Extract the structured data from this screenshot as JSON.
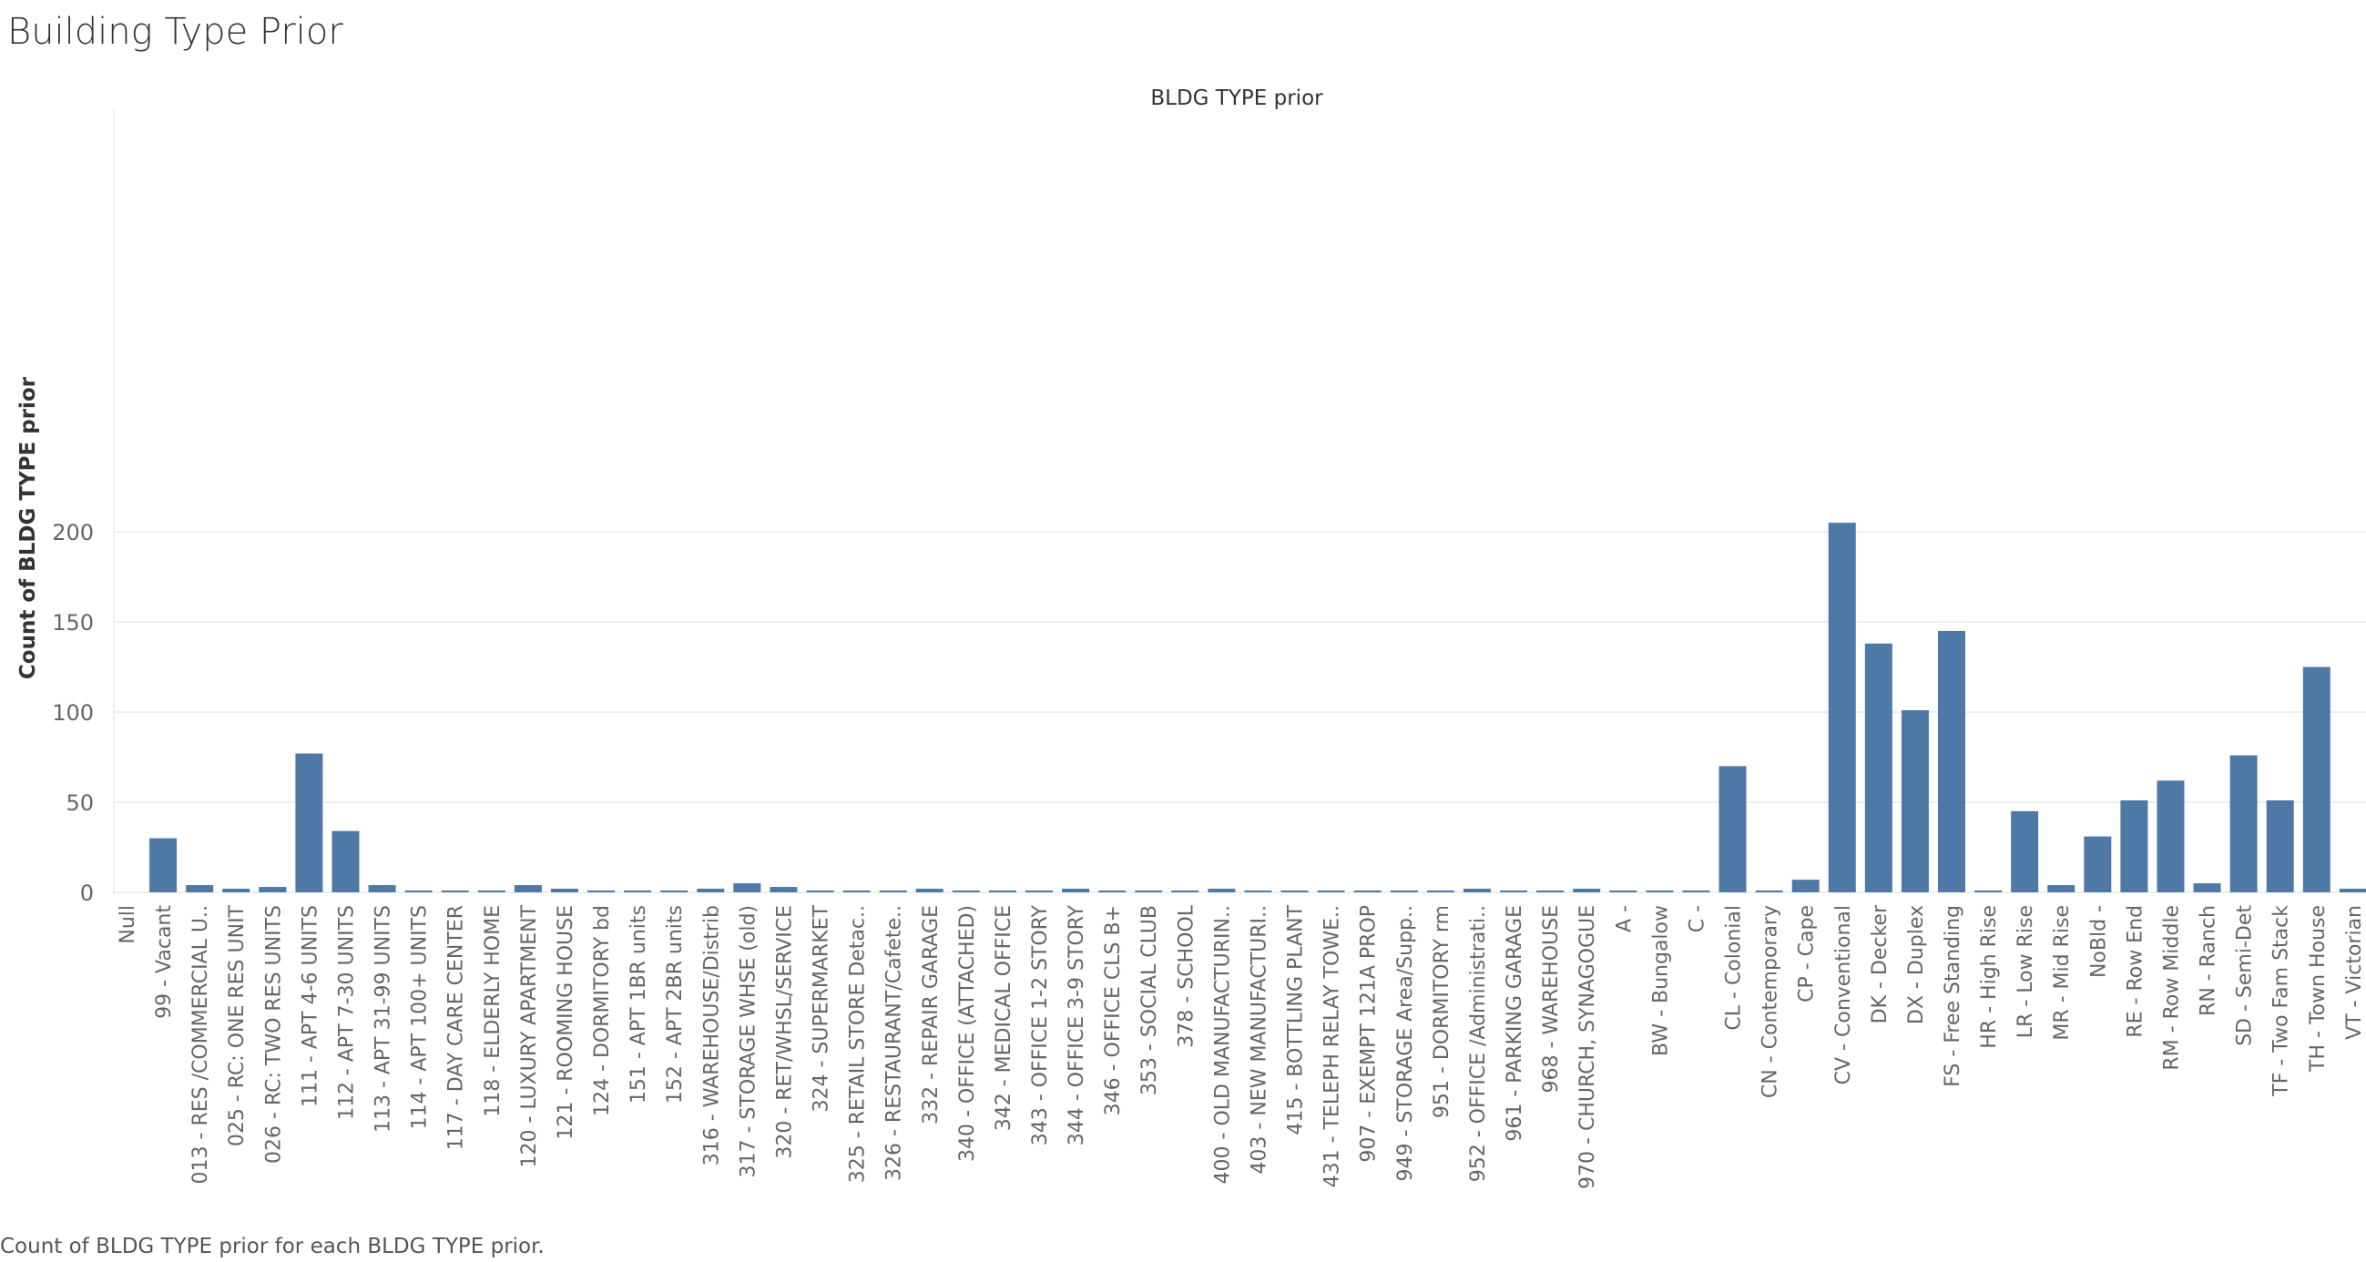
{
  "page": {
    "title": "Building Type Prior",
    "caption": "Count of BLDG TYPE prior for each BLDG TYPE prior."
  },
  "colors": {
    "bar": "#4e79a7",
    "grid": "#e8e8e8",
    "text": "#333333",
    "axis": "#666666"
  },
  "chart_data": {
    "type": "bar",
    "title": "BLDG TYPE prior",
    "xlabel": "",
    "ylabel": "Count of BLDG TYPE prior",
    "ylim": [
      0,
      205
    ],
    "yticks": [
      0,
      50,
      100,
      150,
      200
    ],
    "grid": true,
    "categories": [
      "Null",
      "99 - Vacant",
      "013 - RES /COMMERCIAL U..",
      "025 - RC: ONE RES UNIT",
      "026 - RC: TWO RES UNITS",
      "111 - APT 4-6 UNITS",
      "112 - APT 7-30 UNITS",
      "113 - APT 31-99 UNITS",
      "114 - APT 100+ UNITS",
      "117 - DAY CARE CENTER",
      "118 - ELDERLY HOME",
      "120 - LUXURY APARTMENT",
      "121 - ROOMING HOUSE",
      "124 - DORMITORY  bd",
      "151 - APT 1BR units",
      "152 - APT 2BR units",
      "316 - WAREHOUSE/Distrib",
      "317 - STORAGE WHSE (old)",
      "320 - RET/WHSL/SERVICE",
      "324 - SUPERMARKET",
      "325 - RETAIL STORE Detac..",
      "326 - RESTAURANT/Cafete..",
      "332 - REPAIR GARAGE",
      "340 - OFFICE (ATTACHED)",
      "342 - MEDICAL OFFICE",
      "343 - OFFICE 1-2 STORY",
      "344 - OFFICE 3-9 STORY",
      "346 - OFFICE CLS B+",
      "353 - SOCIAL CLUB",
      "378 - SCHOOL",
      "400 - OLD MANUFACTURIN..",
      "403 - NEW MANUFACTURI..",
      "415 - BOTTLING PLANT",
      "431 - TELEPH RELAY TOWE..",
      "907 - EXEMPT 121A PROP",
      "949 - STORAGE Area/Supp..",
      "951 - DORMITORY  rm",
      "952 - OFFICE /Administrati..",
      "961 - PARKING GARAGE",
      "968 - WAREHOUSE",
      "970 - CHURCH, SYNAGOGUE",
      "A -",
      "BW - Bungalow",
      "C -",
      "CL - Colonial",
      "CN - Contemporary",
      "CP - Cape",
      "CV - Conventional",
      "DK - Decker",
      "DX - Duplex",
      "FS - Free Standing",
      "HR - High Rise",
      "LR - Low Rise",
      "MR - Mid Rise",
      "NoBld -",
      "RE - Row End",
      "RM - Row Middle",
      "RN - Ranch",
      "SD - Semi-Det",
      "TF - Two Fam Stack",
      "TH - Town House",
      "VT - Victorian"
    ],
    "values": [
      0,
      30,
      4,
      2,
      3,
      77,
      34,
      4,
      1,
      1,
      1,
      4,
      2,
      1,
      1,
      1,
      2,
      5,
      3,
      1,
      1,
      1,
      2,
      1,
      1,
      1,
      2,
      1,
      1,
      1,
      2,
      1,
      1,
      1,
      1,
      1,
      1,
      2,
      1,
      1,
      2,
      1,
      1,
      1,
      70,
      1,
      7,
      205,
      138,
      101,
      145,
      1,
      45,
      4,
      31,
      51,
      62,
      5,
      76,
      51,
      125,
      2
    ]
  }
}
